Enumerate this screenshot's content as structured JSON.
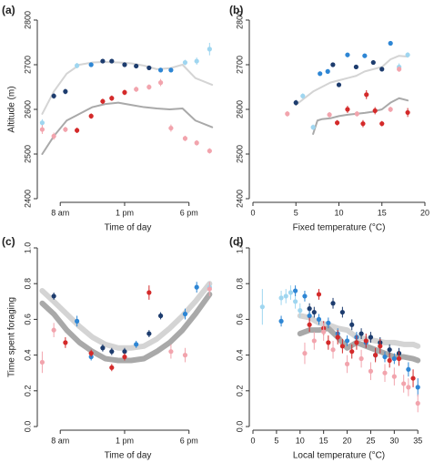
{
  "chart_data": [
    {
      "type": "scatter",
      "label": "(a)",
      "x_label": "Time of day",
      "y_label": "Altitude (m)",
      "xlim": [
        6.5,
        20
      ],
      "xticks": [
        {
          "value": 8,
          "label": "8 am"
        },
        {
          "value": 13,
          "label": "1 pm"
        },
        {
          "value": 18,
          "label": "6 pm"
        }
      ],
      "ylim": [
        2400,
        2800
      ],
      "yticks": [
        2400,
        2500,
        2600,
        2700,
        2800
      ],
      "lines": [
        {
          "color": "#d4d4d4",
          "width": 2,
          "x": [
            6.6,
            7.5,
            8.5,
            9.5,
            10.5,
            11.5,
            12.5,
            13.5,
            14.5,
            15.5,
            16.5,
            17.5,
            18.5,
            19.8
          ],
          "values": [
            2590,
            2640,
            2680,
            2700,
            2705,
            2706,
            2705,
            2703,
            2698,
            2690,
            2692,
            2700,
            2670,
            2655
          ]
        },
        {
          "color": "#a9a9a9",
          "width": 2,
          "x": [
            6.6,
            7.5,
            8.5,
            9.5,
            10.5,
            11.5,
            12.5,
            13.5,
            14.5,
            15.5,
            16.5,
            17.5,
            18.5,
            19.8
          ],
          "values": [
            2500,
            2540,
            2575,
            2590,
            2605,
            2612,
            2615,
            2610,
            2605,
            2602,
            2600,
            2602,
            2575,
            2560
          ]
        }
      ],
      "series": [
        {
          "color": "#9fd6f0",
          "x": [
            6.6,
            9.3,
            17.7,
            18.6,
            19.6
          ],
          "values": [
            2570,
            2698,
            2705,
            2708,
            2735
          ],
          "errors": [
            8,
            6,
            6,
            8,
            14
          ]
        },
        {
          "color": "#1d3c6e",
          "x": [
            7.5,
            8.4,
            11.3,
            12.0,
            13.0,
            13.9,
            14.9
          ],
          "values": [
            2630,
            2640,
            2708,
            2708,
            2700,
            2697,
            2693
          ],
          "errors": [
            6,
            6,
            5,
            5,
            5,
            5,
            5
          ]
        },
        {
          "color": "#2e86d4",
          "x": [
            10.4,
            15.8,
            16.6
          ],
          "values": [
            2700,
            2688,
            2688
          ],
          "errors": [
            5,
            5,
            5
          ]
        },
        {
          "color": "#d42a2a",
          "x": [
            9.3,
            10.4,
            11.3,
            12.0,
            13.0
          ],
          "values": [
            2553,
            2585,
            2618,
            2625,
            2638
          ],
          "errors": [
            6,
            6,
            6,
            6,
            6
          ]
        },
        {
          "color": "#f2a4ad",
          "x": [
            6.6,
            7.5,
            8.4,
            13.9,
            14.9,
            15.8,
            16.6,
            17.7,
            18.6,
            19.6
          ],
          "values": [
            2555,
            2540,
            2555,
            2645,
            2650,
            2660,
            2558,
            2535,
            2525,
            2507
          ],
          "errors": [
            10,
            8,
            6,
            6,
            6,
            8,
            8,
            6,
            6,
            6
          ]
        }
      ]
    },
    {
      "type": "scatter",
      "label": "(b)",
      "x_label": "Fixed temperature (°C)",
      "xlim": [
        0,
        20
      ],
      "xticks": [
        0,
        5,
        10,
        15,
        20
      ],
      "ylim": [
        2400,
        2800
      ],
      "yticks": [
        2400,
        2500,
        2600,
        2700,
        2800
      ],
      "lines": [
        {
          "color": "#d4d4d4",
          "width": 2,
          "x": [
            5,
            6,
            7,
            8,
            9,
            10,
            11,
            12,
            13,
            14,
            15,
            16,
            17,
            18
          ],
          "values": [
            2610,
            2625,
            2640,
            2650,
            2660,
            2665,
            2670,
            2675,
            2685,
            2690,
            2695,
            2712,
            2720,
            2718
          ]
        },
        {
          "color": "#a9a9a9",
          "width": 2,
          "x": [
            7,
            7.5,
            8,
            9,
            10,
            11,
            12,
            13,
            14,
            15,
            16,
            17,
            18
          ],
          "values": [
            2545,
            2575,
            2578,
            2580,
            2585,
            2588,
            2590,
            2592,
            2595,
            2600,
            2615,
            2625,
            2620
          ]
        }
      ],
      "series": [
        {
          "color": "#9fd6f0",
          "x": [
            5.8,
            7,
            17,
            18
          ],
          "values": [
            2630,
            2560,
            2695,
            2722
          ],
          "errors": [
            6,
            6,
            8,
            6
          ]
        },
        {
          "color": "#1d3c6e",
          "x": [
            5,
            9.3,
            10,
            12,
            14,
            15
          ],
          "values": [
            2615,
            2700,
            2655,
            2695,
            2705,
            2690
          ],
          "errors": [
            6,
            5,
            5,
            5,
            5,
            5
          ]
        },
        {
          "color": "#2e86d4",
          "x": [
            7.8,
            8.7,
            11,
            13,
            16
          ],
          "values": [
            2680,
            2685,
            2722,
            2720,
            2748
          ],
          "errors": [
            5,
            5,
            5,
            5,
            5
          ]
        },
        {
          "color": "#d42a2a",
          "x": [
            9.8,
            11,
            12.8,
            13.2,
            14.2,
            15,
            18
          ],
          "values": [
            2570,
            2600,
            2568,
            2633,
            2597,
            2568,
            2593
          ],
          "errors": [
            6,
            8,
            8,
            10,
            8,
            6,
            10
          ]
        },
        {
          "color": "#f2a4ad",
          "x": [
            4,
            8.9,
            12.1,
            16,
            17
          ],
          "values": [
            2590,
            2588,
            2590,
            2600,
            2690
          ],
          "errors": [
            6,
            6,
            6,
            6,
            6
          ]
        }
      ]
    },
    {
      "type": "scatter",
      "label": "(c)",
      "x_label": "Time of day",
      "y_label": "Time spent foraging",
      "xlim": [
        6.5,
        20
      ],
      "xticks": [
        {
          "value": 8,
          "label": "8 am"
        },
        {
          "value": 13,
          "label": "1 pm"
        },
        {
          "value": 18,
          "label": "6 pm"
        }
      ],
      "ylim": [
        0,
        1
      ],
      "yticks": [
        {
          "value": 0,
          "label": "0.0"
        },
        0.2,
        0.4,
        0.6,
        0.8,
        {
          "value": 1,
          "label": "1.0"
        }
      ],
      "lines": [
        {
          "color": "#d4d4d4",
          "width": 6,
          "x": [
            6.6,
            7.5,
            8.5,
            9.5,
            10.5,
            11.5,
            12.5,
            13.5,
            14.5,
            15.5,
            16.5,
            17.5,
            18.5,
            19.6
          ],
          "values": [
            0.76,
            0.7,
            0.63,
            0.56,
            0.5,
            0.46,
            0.44,
            0.44,
            0.45,
            0.49,
            0.55,
            0.62,
            0.7,
            0.8
          ]
        },
        {
          "color": "#a9a9a9",
          "width": 6,
          "x": [
            6.6,
            7.5,
            8.5,
            9.5,
            10.5,
            11.5,
            12.5,
            13.5,
            14.5,
            15.5,
            16.5,
            17.5,
            18.5,
            19.6
          ],
          "values": [
            0.69,
            0.63,
            0.54,
            0.47,
            0.42,
            0.38,
            0.37,
            0.37,
            0.38,
            0.42,
            0.47,
            0.54,
            0.63,
            0.74
          ]
        }
      ],
      "series": [
        {
          "color": "#1d3c6e",
          "x": [
            7.5,
            11.3,
            12.0,
            13.0,
            14.9,
            15.8
          ],
          "values": [
            0.73,
            0.44,
            0.42,
            0.42,
            0.52,
            0.62
          ],
          "errors": [
            0.02,
            0.02,
            0.02,
            0.02,
            0.02,
            0.02
          ]
        },
        {
          "color": "#2e86d4",
          "x": [
            9.3,
            10.4,
            13.9,
            17.7,
            18.6
          ],
          "values": [
            0.59,
            0.39,
            0.46,
            0.63,
            0.78
          ],
          "errors": [
            0.03,
            0.02,
            0.02,
            0.03,
            0.03
          ]
        },
        {
          "color": "#9fd6f0",
          "x": [
            19.6
          ],
          "values": [
            0.78
          ],
          "errors": [
            0.03
          ]
        },
        {
          "color": "#d42a2a",
          "x": [
            8.4,
            10.4,
            12.0,
            13.0,
            14.9
          ],
          "values": [
            0.47,
            0.41,
            0.33,
            0.39,
            0.75
          ],
          "errors": [
            0.03,
            0.02,
            0.02,
            0.02,
            0.04
          ]
        },
        {
          "color": "#f2a4ad",
          "x": [
            6.6,
            7.5,
            16.6,
            17.7,
            19.6
          ],
          "values": [
            0.36,
            0.54,
            0.42,
            0.4,
            0.77
          ],
          "errors": [
            0.06,
            0.04,
            0.04,
            0.04,
            0.04
          ]
        }
      ]
    },
    {
      "type": "scatter",
      "label": "(d)",
      "x_label": "Local temperature (°C)",
      "xlim": [
        0,
        36.5
      ],
      "xticks": [
        0,
        5,
        10,
        15,
        20,
        25,
        30,
        35
      ],
      "ylim": [
        0,
        1
      ],
      "yticks": [
        {
          "value": 0,
          "label": "0.0"
        },
        0.2,
        0.4,
        0.6,
        0.8,
        {
          "value": 1,
          "label": "1.0"
        }
      ],
      "lines": [
        {
          "color": "#d4d4d4",
          "width": 6,
          "x": [
            10,
            12,
            14,
            16,
            18,
            20,
            22,
            24,
            26,
            28,
            30,
            32,
            34,
            35
          ],
          "values": [
            0.62,
            0.61,
            0.58,
            0.57,
            0.55,
            0.54,
            0.5,
            0.49,
            0.48,
            0.47,
            0.47,
            0.46,
            0.46,
            0.45
          ]
        },
        {
          "color": "#a9a9a9",
          "width": 6,
          "x": [
            10,
            12,
            14,
            16,
            18,
            20,
            22,
            24,
            26,
            28,
            30,
            32,
            34,
            35
          ],
          "values": [
            0.52,
            0.54,
            0.54,
            0.55,
            0.5,
            0.44,
            0.47,
            0.45,
            0.43,
            0.41,
            0.39,
            0.39,
            0.38,
            0.37
          ]
        }
      ],
      "series": [
        {
          "color": "#9fd6f0",
          "x": [
            2,
            6,
            7,
            8,
            9,
            10
          ],
          "values": [
            0.67,
            0.72,
            0.73,
            0.75,
            0.7,
            0.65
          ],
          "errors": [
            0.1,
            0.04,
            0.04,
            0.04,
            0.04,
            0.04
          ]
        },
        {
          "color": "#1d3c6e",
          "x": [
            12,
            13,
            17,
            19,
            21,
            23,
            25,
            27,
            29,
            31
          ],
          "values": [
            0.66,
            0.64,
            0.69,
            0.64,
            0.57,
            0.52,
            0.5,
            0.47,
            0.43,
            0.41
          ],
          "errors": [
            0.03,
            0.03,
            0.03,
            0.03,
            0.03,
            0.03,
            0.03,
            0.03,
            0.03,
            0.03
          ]
        },
        {
          "color": "#2e86d4",
          "x": [
            6,
            9,
            11,
            12,
            14,
            16,
            18,
            20,
            22,
            24,
            26,
            28,
            30,
            33,
            35
          ],
          "values": [
            0.59,
            0.76,
            0.73,
            0.62,
            0.6,
            0.58,
            0.52,
            0.48,
            0.5,
            0.47,
            0.4,
            0.39,
            0.38,
            0.32,
            0.22
          ],
          "errors": [
            0.03,
            0.03,
            0.03,
            0.03,
            0.03,
            0.03,
            0.03,
            0.03,
            0.03,
            0.03,
            0.03,
            0.03,
            0.03,
            0.04,
            0.05
          ]
        },
        {
          "color": "#d42a2a",
          "x": [
            12,
            14,
            15,
            16,
            18,
            19,
            21,
            22,
            24,
            26,
            27,
            29,
            31,
            34
          ],
          "values": [
            0.57,
            0.74,
            0.55,
            0.47,
            0.5,
            0.45,
            0.42,
            0.47,
            0.48,
            0.4,
            0.45,
            0.37,
            0.38,
            0.27
          ],
          "errors": [
            0.04,
            0.03,
            0.04,
            0.04,
            0.04,
            0.04,
            0.04,
            0.04,
            0.04,
            0.04,
            0.04,
            0.04,
            0.04,
            0.05
          ]
        },
        {
          "color": "#f2a4ad",
          "x": [
            11,
            13,
            15,
            17,
            20,
            23,
            25,
            28,
            30,
            32,
            33,
            35
          ],
          "values": [
            0.41,
            0.48,
            0.53,
            0.43,
            0.35,
            0.38,
            0.31,
            0.3,
            0.28,
            0.24,
            0.22,
            0.13
          ],
          "errors": [
            0.06,
            0.05,
            0.05,
            0.05,
            0.05,
            0.05,
            0.05,
            0.05,
            0.05,
            0.05,
            0.05,
            0.05
          ]
        }
      ]
    }
  ]
}
